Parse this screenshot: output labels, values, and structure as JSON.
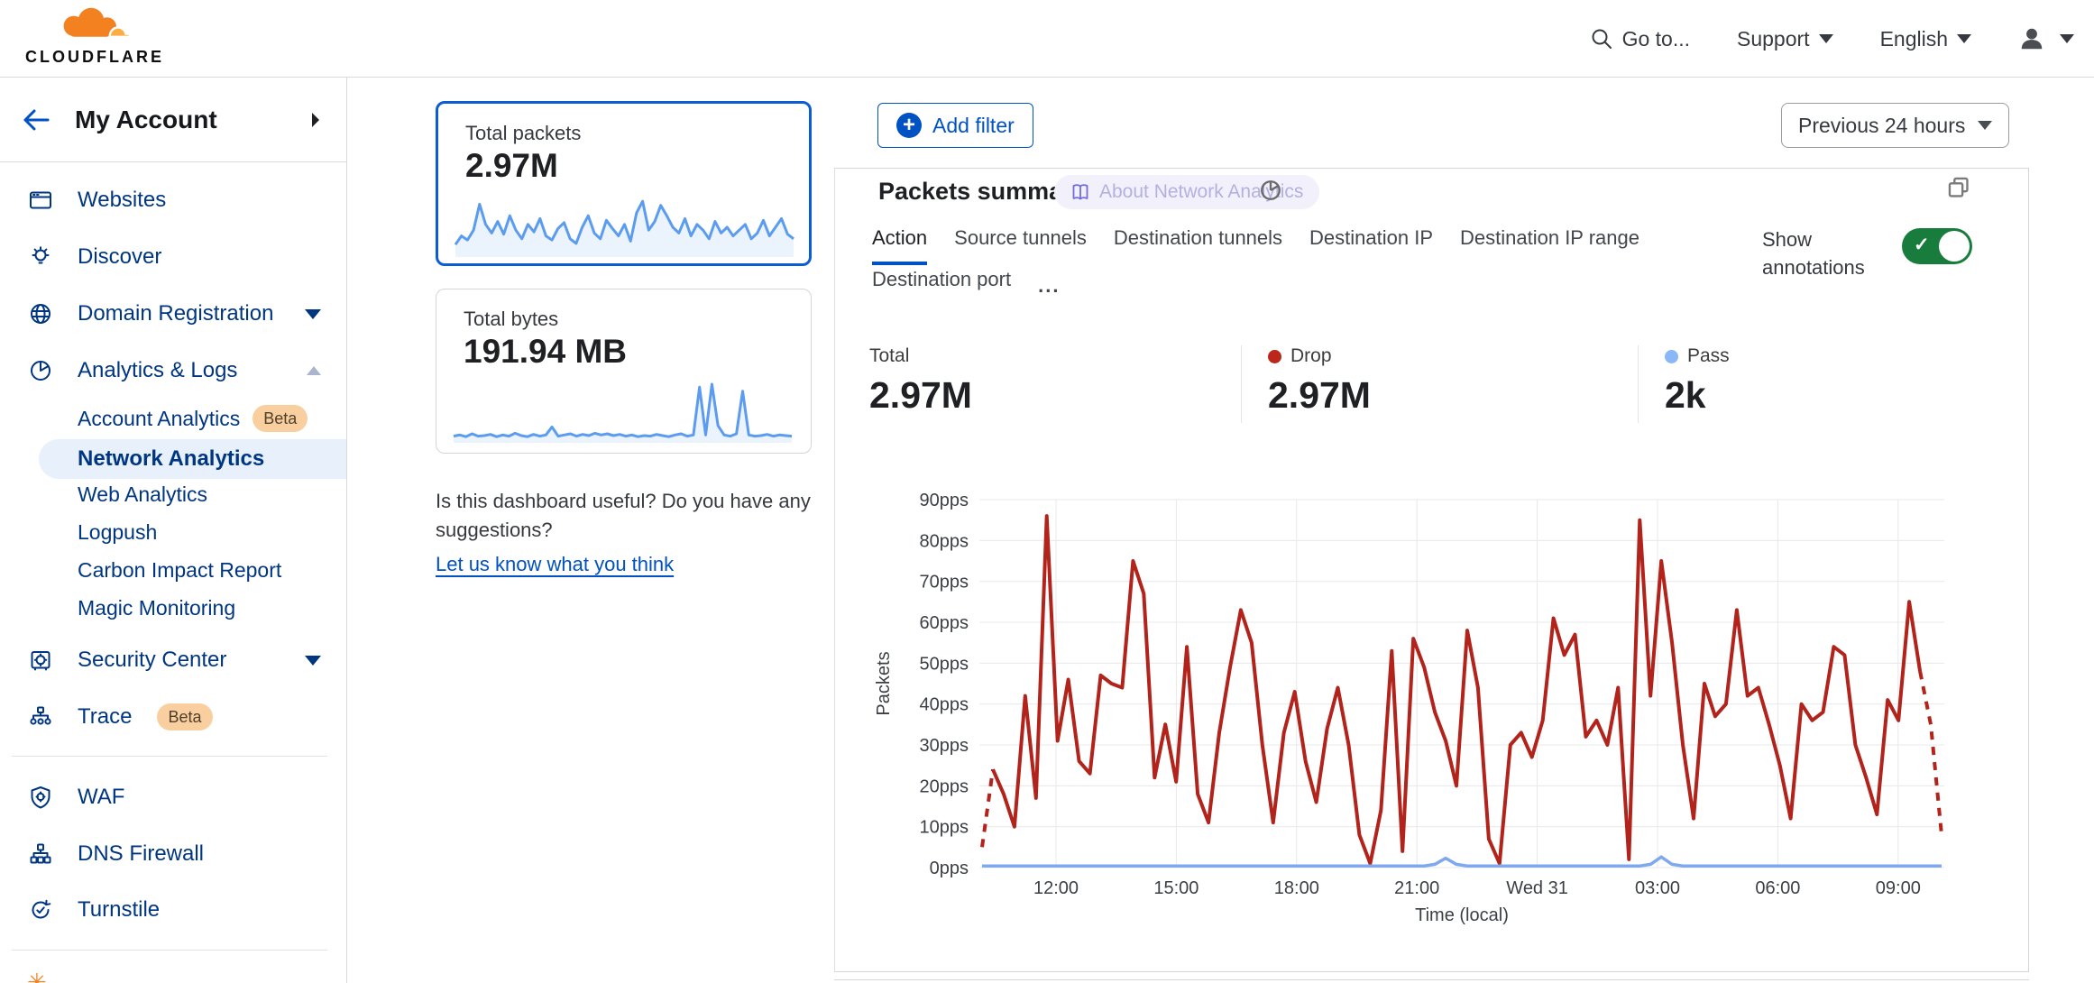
{
  "brand": {
    "logo_text": "CLOUDFLARE"
  },
  "topnav": {
    "goto_label": "Go to...",
    "support_label": "Support",
    "language_label": "English"
  },
  "sidebar": {
    "account_label": "My Account",
    "beta_label": "Beta",
    "items": [
      {
        "label": "Websites"
      },
      {
        "label": "Discover"
      },
      {
        "label": "Domain Registration"
      },
      {
        "label": "Analytics & Logs"
      },
      {
        "label": "Security Center"
      },
      {
        "label": "Trace"
      },
      {
        "label": "WAF"
      },
      {
        "label": "DNS Firewall"
      },
      {
        "label": "Turnstile"
      }
    ],
    "analytics_children": [
      {
        "label": "Account Analytics"
      },
      {
        "label": "Network Analytics"
      },
      {
        "label": "Web Analytics"
      },
      {
        "label": "Logpush"
      },
      {
        "label": "Carbon Impact Report"
      },
      {
        "label": "Magic Monitoring"
      }
    ],
    "active_item": "Network Analytics"
  },
  "summary_cards": [
    {
      "label": "Total packets",
      "value": "2.97M",
      "selected": true
    },
    {
      "label": "Total bytes",
      "value": "191.94 MB",
      "selected": false
    }
  ],
  "feedback": {
    "question": "Is this dashboard useful? Do you have any suggestions?",
    "link_label": "Let us know what you think"
  },
  "toolbar": {
    "add_filter_label": "Add filter",
    "time_range_label": "Previous 24 hours"
  },
  "panel": {
    "title": "Packets summary",
    "about_badge": "About Network Analytics",
    "tabs_row1": [
      "Action",
      "Source tunnels",
      "Destination tunnels",
      "Destination IP",
      "Destination IP range"
    ],
    "tabs_row2": [
      "Destination port"
    ],
    "active_tab": "Action",
    "more_label": "...",
    "show_annotations_label": "Show annotations",
    "annotations_on": true,
    "stats": [
      {
        "label": "Total",
        "value": "2.97M",
        "dot_color": null
      },
      {
        "label": "Drop",
        "value": "2.97M",
        "dot_color": "#bb271a"
      },
      {
        "label": "Pass",
        "value": "2k",
        "dot_color": "#8ab7f7"
      }
    ]
  },
  "colors": {
    "accent_blue": "#0051c3",
    "sidebar_navy": "#003681",
    "selected_item_bg": "#e8f1fb",
    "beta_badge_bg": "#f9cfa0",
    "toggle_green": "#187d3c",
    "drop_red": "#b2231b",
    "pass_blue": "#7fa8ef",
    "sparkline_blue": "#5b9bf0"
  },
  "chart_data": [
    {
      "type": "line",
      "title": "Packets summary",
      "xlabel": "Time (local)",
      "ylabel": "Packets",
      "ylim": [
        0,
        90
      ],
      "y_tick_step": 10,
      "y_tick_suffix": "pps",
      "grid": true,
      "x_ticks": [
        "12:00",
        "15:00",
        "18:00",
        "21:00",
        "Wed 31",
        "03:00",
        "06:00",
        "09:00"
      ],
      "series": [
        {
          "name": "Drop",
          "color": "#b2231b",
          "dashed_head_segments": 1,
          "dashed_tail_segments": 2,
          "values": [
            5,
            24,
            18,
            10,
            42,
            17,
            86,
            31,
            46,
            26,
            23,
            47,
            45,
            44,
            75,
            67,
            22,
            35,
            21,
            54,
            18,
            11,
            33,
            49,
            63,
            55,
            30,
            11,
            33,
            43,
            26,
            16,
            34,
            44,
            30,
            8,
            1,
            14,
            53,
            4,
            56,
            49,
            38,
            31,
            20,
            58,
            44,
            7,
            1,
            30,
            33,
            27,
            36,
            61,
            52,
            57,
            32,
            36,
            30,
            44,
            2,
            85,
            42,
            75,
            55,
            30,
            12,
            45,
            37,
            40,
            63,
            42,
            44,
            35,
            25,
            12,
            40,
            36,
            38,
            54,
            52,
            30,
            22,
            13,
            41,
            36,
            65,
            48,
            35,
            8
          ]
        },
        {
          "name": "Pass",
          "color": "#7fa8ef",
          "values": [
            0.4,
            0.4,
            0.4,
            0.4,
            0.4,
            0.4,
            0.4,
            0.4,
            0.4,
            0.4,
            0.4,
            0.4,
            0.4,
            0.4,
            0.4,
            0.4,
            0.4,
            0.4,
            0.4,
            0.4,
            0.4,
            0.4,
            0.4,
            0.4,
            0.4,
            0.4,
            0.4,
            0.4,
            0.4,
            0.4,
            0.4,
            0.4,
            0.4,
            0.4,
            0.4,
            0.4,
            0.4,
            0.4,
            0.4,
            0.4,
            0.4,
            0.4,
            0.8,
            2.3,
            0.8,
            0.4,
            0.4,
            0.4,
            0.4,
            0.4,
            0.4,
            0.4,
            0.4,
            0.4,
            0.4,
            0.4,
            0.4,
            0.4,
            0.4,
            0.4,
            0.4,
            0.4,
            0.8,
            2.6,
            0.8,
            0.4,
            0.4,
            0.4,
            0.4,
            0.4,
            0.4,
            0.4,
            0.4,
            0.4,
            0.4,
            0.4,
            0.4,
            0.4,
            0.4,
            0.4,
            0.4,
            0.4,
            0.4,
            0.4,
            0.4,
            0.4,
            0.4,
            0.4,
            0.4,
            0.4
          ]
        }
      ]
    },
    {
      "type": "line",
      "title": "Total packets sparkline",
      "ylim": [
        0,
        100
      ],
      "values": [
        20,
        35,
        28,
        45,
        90,
        55,
        40,
        60,
        38,
        70,
        45,
        30,
        55,
        42,
        65,
        35,
        28,
        48,
        58,
        30,
        22,
        50,
        70,
        40,
        30,
        62,
        48,
        35,
        55,
        26,
        75,
        95,
        45,
        60,
        88,
        70,
        50,
        40,
        65,
        35,
        55,
        45,
        30,
        60,
        40,
        50,
        35,
        45,
        55,
        30,
        40,
        62,
        35,
        50,
        65,
        38,
        30
      ]
    },
    {
      "type": "line",
      "title": "Total bytes sparkline",
      "ylim": [
        0,
        100
      ],
      "values": [
        10,
        12,
        9,
        14,
        10,
        11,
        13,
        9,
        12,
        10,
        15,
        11,
        9,
        13,
        10,
        12,
        26,
        10,
        12,
        14,
        10,
        13,
        11,
        15,
        12,
        14,
        11,
        13,
        10,
        12,
        9,
        11,
        10,
        13,
        11,
        9,
        12,
        14,
        10,
        12,
        95,
        12,
        100,
        28,
        12,
        10,
        14,
        88,
        12,
        10,
        11,
        13,
        10,
        12,
        11,
        10
      ]
    }
  ]
}
